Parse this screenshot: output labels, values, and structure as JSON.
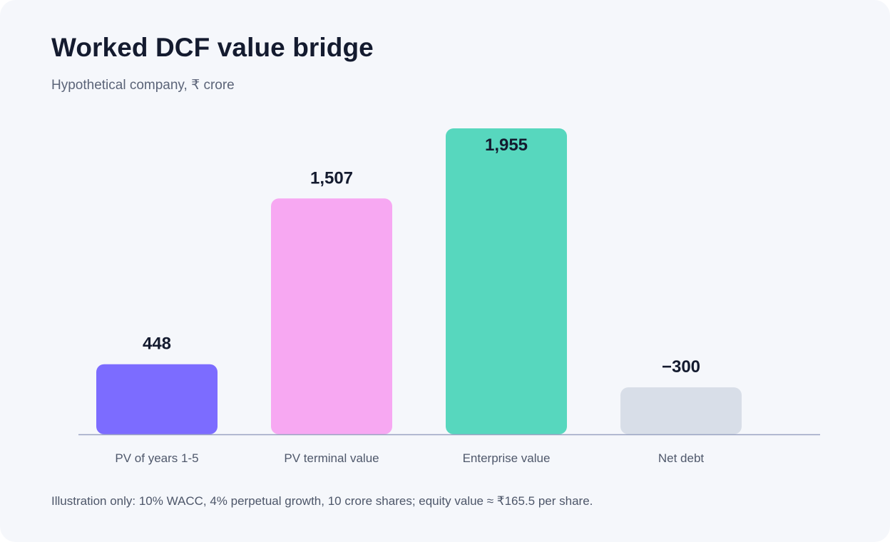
{
  "title": "Worked DCF value bridge",
  "subtitle": "Hypothetical company, ₹ crore",
  "footnote": "Illustration only: 10% WACC, 4% perpetual growth, 10 crore shares; equity value ≈ ₹165.5 per share.",
  "chart_data": {
    "type": "bar",
    "title": "Worked DCF value bridge",
    "subtitle": "Hypothetical company, ₹ crore",
    "xlabel": "",
    "ylabel": "",
    "grid": false,
    "categories": [
      "PV of years 1-5",
      "PV terminal value",
      "Enterprise value",
      "Net debt"
    ],
    "values": [
      448,
      1507,
      1955,
      -300
    ],
    "value_labels": [
      "448",
      "1,507",
      "1,955",
      "−300"
    ],
    "colors": [
      "#7c6cff",
      "#f7a8f2",
      "#57d7be",
      "#d8dee8"
    ],
    "axis_color": "#9aa3c2"
  }
}
